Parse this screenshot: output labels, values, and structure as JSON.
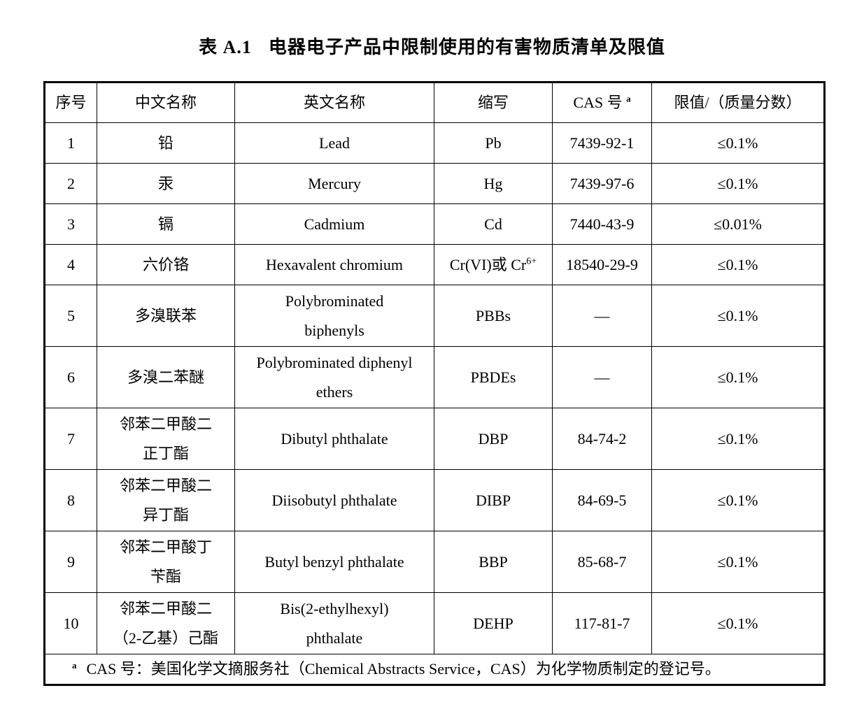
{
  "title": {
    "prefix": "表 A.1",
    "main": "电器电子产品中限制使用的有害物质清单及限值"
  },
  "table": {
    "headers": [
      "序号",
      "中文名称",
      "英文名称",
      "缩写",
      "CAS 号",
      "限值/（质量分数）"
    ],
    "cas_header_sup": "a",
    "rows": [
      {
        "no": "1",
        "cn": "铅",
        "en": "Lead",
        "abbr": "Pb",
        "cas": "7439-92-1",
        "limit": "≤0.1%"
      },
      {
        "no": "2",
        "cn": "汞",
        "en": "Mercury",
        "abbr": "Hg",
        "cas": "7439-97-6",
        "limit": "≤0.1%"
      },
      {
        "no": "3",
        "cn": "镉",
        "en": "Cadmium",
        "abbr": "Cd",
        "cas": "7440-43-9",
        "limit": "≤0.01%"
      },
      {
        "no": "4",
        "cn": "六价铬",
        "en": "Hexavalent chromium",
        "abbr": "Cr(VI)或 Cr",
        "abbr_sup": "6+",
        "cas": "18540-29-9",
        "limit": "≤0.1%"
      },
      {
        "no": "5",
        "cn": "多溴联苯",
        "en": "Polybrominated\nbiphenyls",
        "abbr": "PBBs",
        "cas": "—",
        "limit": "≤0.1%"
      },
      {
        "no": "6",
        "cn": "多溴二苯醚",
        "en": "Polybrominated diphenyl\nethers",
        "abbr": "PBDEs",
        "cas": "—",
        "limit": "≤0.1%"
      },
      {
        "no": "7",
        "cn": "邻苯二甲酸二\n正丁酯",
        "en": "Dibutyl phthalate",
        "abbr": "DBP",
        "cas": "84-74-2",
        "limit": "≤0.1%"
      },
      {
        "no": "8",
        "cn": "邻苯二甲酸二\n异丁酯",
        "en": "Diisobutyl phthalate",
        "abbr": "DIBP",
        "cas": "84-69-5",
        "limit": "≤0.1%"
      },
      {
        "no": "9",
        "cn": "邻苯二甲酸丁\n苄酯",
        "en": "Butyl benzyl phthalate",
        "abbr": "BBP",
        "cas": "85-68-7",
        "limit": "≤0.1%"
      },
      {
        "no": "10",
        "cn": "邻苯二甲酸二\n（2-乙基）己酯",
        "en": "Bis(2-ethylhexyl)\nphthalate",
        "abbr": "DEHP",
        "cas": "117-81-7",
        "limit": "≤0.1%"
      }
    ],
    "footnote": {
      "marker": "a",
      "text": "CAS 号：美国化学文摘服务社（Chemical Abstracts Service，CAS）为化学物质制定的登记号。"
    }
  },
  "colors": {
    "text": "#000000",
    "background": "#ffffff",
    "border": "#000000"
  }
}
